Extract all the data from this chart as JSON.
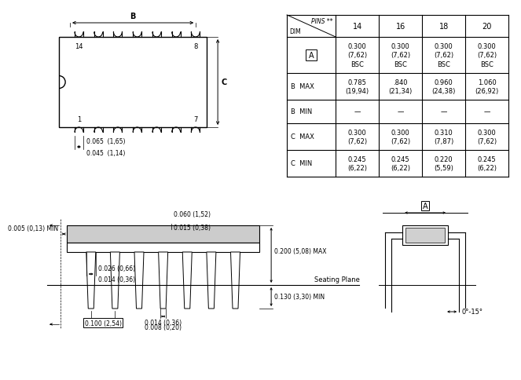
{
  "background_color": "#ffffff",
  "line_color": "#000000",
  "table": {
    "col_headers": [
      "14",
      "16",
      "18",
      "20"
    ],
    "dim_label": "DIM",
    "pins_label": "PINS **",
    "cells": [
      [
        "0.300\n(7,62)\nBSC",
        "0.300\n(7,62)\nBSC",
        "0.300\n(7,62)\nBSC",
        "0.300\n(7,62)\nBSC"
      ],
      [
        "0.785\n(19,94)",
        ".840\n(21,34)",
        "0.960\n(24,38)",
        "1.060\n(26,92)"
      ],
      [
        "—",
        "—",
        "—",
        "—"
      ],
      [
        "0.300\n(7,62)",
        "0.300\n(7,62)",
        "0.310\n(7,87)",
        "0.300\n(7,62)"
      ],
      [
        "0.245\n(6,22)",
        "0.245\n(6,22)",
        "0.220\n(5,59)",
        "0.245\n(6,22)"
      ]
    ],
    "row_labels_left": [
      "A",
      "B  MAX",
      "B  MIN",
      "C  MAX",
      "C  MIN"
    ]
  },
  "top_ic": {
    "B_label": "B",
    "C_label": "C",
    "pin14": "14",
    "pin8": "8",
    "pin1": "1",
    "pin7": "7",
    "dim1": "0.065  (1,65)",
    "dim2": "0.045  (1,14)",
    "n_pins": 7
  },
  "bottom_left": {
    "ann_005": "0.005 (0,13) MIN",
    "ann_060": "0.060 (1,52)",
    "ann_015": "0.015 (0,38)",
    "ann_200": "0.200 (5,08) MAX",
    "ann_seat": "Seating Plane",
    "ann_130": "0.130 (3,30) MIN",
    "ann_026": "0.026 (0,66)",
    "ann_014a": "0.014 (0,36)",
    "ann_100": "0.100 (2,54)",
    "ann_014b": "0.014 (0,36)",
    "ann_008": "0.008 (0,20)"
  },
  "bottom_right": {
    "A_label": "A",
    "angle": "0°-15°"
  },
  "fs": 6.0,
  "fm": 7.0,
  "fl": 8.5
}
